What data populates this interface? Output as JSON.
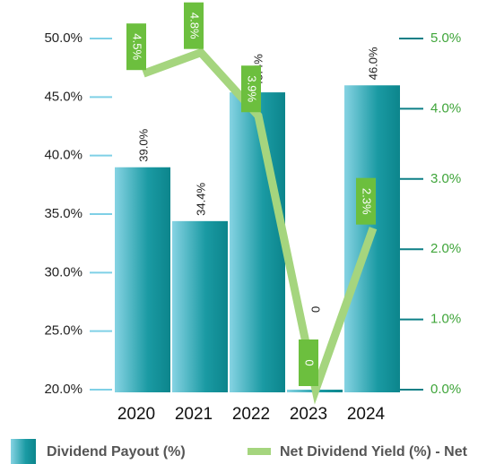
{
  "chart_data": {
    "type": "bar-line",
    "categories": [
      "2020",
      "2021",
      "2022",
      "2023",
      "2024"
    ],
    "series": [
      {
        "name": "Dividend Payout (%)",
        "type": "bar",
        "color": "#0f8f96",
        "values": [
          39.0,
          34.4,
          45.4,
          0,
          46.0
        ],
        "value_labels": [
          "39.0%",
          "34.4%",
          "45.4%",
          "0",
          "46.0%"
        ]
      },
      {
        "name": "Net Dividend Yield (%) - Net",
        "type": "line",
        "axis": "y2",
        "color": "#a5d57e",
        "values": [
          4.5,
          4.8,
          3.9,
          0,
          2.3
        ],
        "value_labels": [
          "4.5%",
          "4.8%",
          "3.9%",
          "0",
          "2.3%"
        ]
      }
    ],
    "ylim": [
      20,
      50
    ],
    "yticks": [
      {
        "value": 20,
        "label": "20.0%"
      },
      {
        "value": 25,
        "label": "25.0%"
      },
      {
        "value": 30,
        "label": "30.0%"
      },
      {
        "value": 35,
        "label": "35.0%"
      },
      {
        "value": 40,
        "label": "40.0%"
      },
      {
        "value": 45,
        "label": "45.0%"
      },
      {
        "value": 50,
        "label": "50.0%"
      }
    ],
    "y2lim": [
      0,
      5
    ],
    "y2ticks": [
      {
        "value": 0,
        "label": "0.0%"
      },
      {
        "value": 1,
        "label": "1.0%"
      },
      {
        "value": 2,
        "label": "2.0%"
      },
      {
        "value": 3,
        "label": "3.0%"
      },
      {
        "value": 4,
        "label": "4.0%"
      },
      {
        "value": 5,
        "label": "5.0%"
      }
    ]
  }
}
